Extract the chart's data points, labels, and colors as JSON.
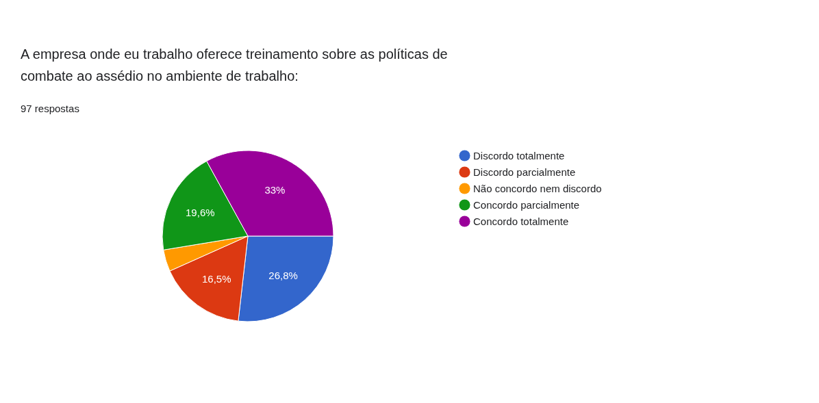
{
  "chart_data": {
    "type": "pie",
    "title": "A empresa onde eu trabalho oferece treinamento sobre as políticas de combate ao assédio no ambiente de trabalho:",
    "subtitle": "97 respostas",
    "categories": [
      "Discordo totalmente",
      "Discordo parcialmente",
      "Não concordo nem discordo",
      "Concordo parcialmente",
      "Concordo totalmente"
    ],
    "values": [
      26.8,
      16.5,
      4.1,
      19.6,
      33
    ],
    "colors": [
      "#3366cc",
      "#dc3912",
      "#ff9900",
      "#109618",
      "#990099"
    ],
    "value_labels": [
      "26,8%",
      "16,5%",
      null,
      "19,6%",
      "33%"
    ],
    "legend": "right"
  }
}
